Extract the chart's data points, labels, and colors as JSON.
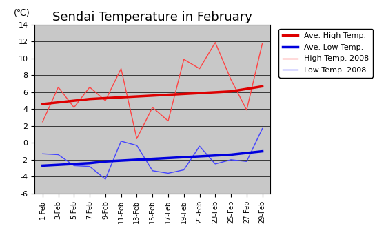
{
  "title": "Sendai Temperature in February",
  "ylabel": "(℃)",
  "ylim": [
    -6,
    14
  ],
  "yticks": [
    -6,
    -4,
    -2,
    0,
    2,
    4,
    6,
    8,
    10,
    12,
    14
  ],
  "x_labels": [
    "1-Feb",
    "3-Feb",
    "5-Feb",
    "7-Feb",
    "9-Feb",
    "11-Feb",
    "13-Feb",
    "15-Feb",
    "17-Feb",
    "19-Feb",
    "21-Feb",
    "23-Feb",
    "25-Feb",
    "27-Feb",
    "29-Feb"
  ],
  "ave_high": [
    4.6,
    4.8,
    5.0,
    5.2,
    5.3,
    5.4,
    5.5,
    5.6,
    5.7,
    5.8,
    5.9,
    6.0,
    6.1,
    6.4,
    6.7
  ],
  "ave_low": [
    -2.7,
    -2.6,
    -2.5,
    -2.4,
    -2.2,
    -2.1,
    -2.0,
    -1.9,
    -1.8,
    -1.7,
    -1.6,
    -1.5,
    -1.4,
    -1.2,
    -1.0
  ],
  "high_2008": [
    2.5,
    6.6,
    4.2,
    6.6,
    5.0,
    8.8,
    0.5,
    4.2,
    2.6,
    9.9,
    8.8,
    11.9,
    7.5,
    3.9,
    11.8
  ],
  "low_2008": [
    -1.3,
    -1.4,
    -2.7,
    -2.8,
    -4.3,
    0.2,
    -0.3,
    -3.3,
    -3.6,
    -3.2,
    -0.4,
    -2.5,
    -2.0,
    -2.2,
    1.7
  ],
  "color_ave_high": "#dd0000",
  "color_ave_low": "#0000dd",
  "color_high_2008": "#ff4444",
  "color_low_2008": "#4444ff",
  "plot_area_color": "#c8c8c8",
  "legend_fontsize": 8,
  "title_fontsize": 13
}
